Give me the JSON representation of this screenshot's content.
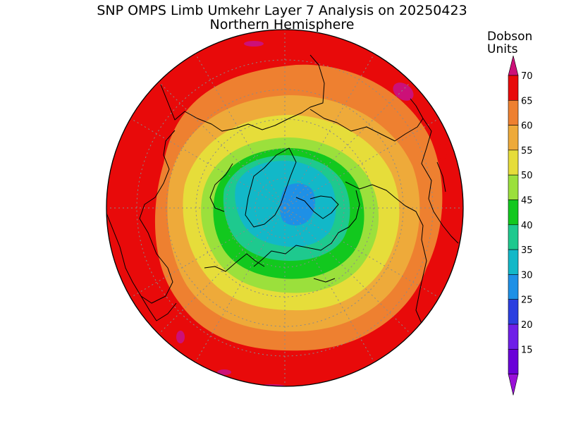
{
  "title": {
    "line1": "SNP OMPS Limb Umkehr Layer 7 Analysis on 20250423",
    "line2": "Northern Hemisphere"
  },
  "colorbar": {
    "title_line1": "Dobson",
    "title_line2": "Units",
    "levels": [
      {
        "value": "15",
        "color": "#6a00d8"
      },
      {
        "value": "20",
        "color": "#6f1fe8"
      },
      {
        "value": "25",
        "color": "#2b3fe0"
      },
      {
        "value": "30",
        "color": "#1e90e6"
      },
      {
        "value": "35",
        "color": "#12b8c8"
      },
      {
        "value": "40",
        "color": "#1ec98e"
      },
      {
        "value": "45",
        "color": "#12c81e"
      },
      {
        "value": "50",
        "color": "#9be03c"
      },
      {
        "value": "55",
        "color": "#e6dd3a"
      },
      {
        "value": "60",
        "color": "#eeaa3a"
      },
      {
        "value": "65",
        "color": "#ee8030"
      },
      {
        "value": "70",
        "color": "#e80a0a"
      }
    ],
    "under_color": "#9a10d8",
    "over_color": "#cc1078"
  },
  "map": {
    "projection": "polar stereographic",
    "hemisphere": "north",
    "field_unit": "DU"
  }
}
